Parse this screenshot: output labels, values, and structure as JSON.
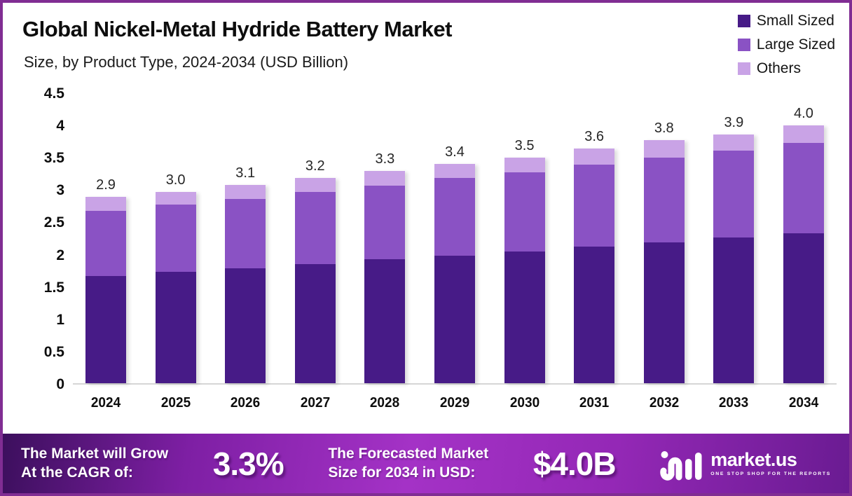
{
  "header": {
    "title": "Global Nickel-Metal Hydride Battery Market",
    "subtitle": "Size, by Product Type, 2024-2034 (USD Billion)"
  },
  "legend": {
    "items": [
      {
        "label": "Small Sized",
        "color": "#471B87"
      },
      {
        "label": "Large Sized",
        "color": "#8A52C4"
      },
      {
        "label": "Others",
        "color": "#C9A3E6"
      }
    ]
  },
  "chart_data": {
    "type": "bar",
    "stacked": true,
    "title": "Global Nickel-Metal Hydride Battery Market Size, by Product Type, 2024-2034 (USD Billion)",
    "categories": [
      "2024",
      "2025",
      "2026",
      "2027",
      "2028",
      "2029",
      "2030",
      "2031",
      "2032",
      "2033",
      "2034"
    ],
    "series": [
      {
        "name": "Small Sized",
        "color": "#471B87",
        "values": [
          1.66,
          1.72,
          1.78,
          1.84,
          1.92,
          1.97,
          2.04,
          2.11,
          2.18,
          2.26,
          2.32
        ]
      },
      {
        "name": "Large Sized",
        "color": "#8A52C4",
        "values": [
          1.01,
          1.05,
          1.07,
          1.12,
          1.14,
          1.21,
          1.22,
          1.27,
          1.31,
          1.34,
          1.4
        ]
      },
      {
        "name": "Others",
        "color": "#C9A3E6",
        "values": [
          0.21,
          0.19,
          0.22,
          0.22,
          0.23,
          0.21,
          0.23,
          0.25,
          0.27,
          0.25,
          0.27
        ]
      }
    ],
    "total_labels": [
      "2.9",
      "3.0",
      "3.1",
      "3.2",
      "3.3",
      "3.4",
      "3.5",
      "3.6",
      "3.8",
      "3.9",
      "4.0"
    ],
    "xlabel": "",
    "ylabel": "",
    "ylim": [
      0,
      4.5
    ],
    "y_ticks": [
      0,
      0.5,
      1,
      1.5,
      2,
      2.5,
      3,
      3.5,
      4,
      4.5
    ],
    "grid": false,
    "legend_position": "top-right"
  },
  "footer": {
    "cagr_label_line1": "The Market will Grow",
    "cagr_label_line2": "At the CAGR of:",
    "cagr_value": "3.3%",
    "forecast_label_line1": "The Forecasted Market",
    "forecast_label_line2": "Size for 2034 in USD:",
    "forecast_value": "$4.0B",
    "brand": {
      "name": "market.us",
      "tagline": "ONE STOP SHOP FOR THE REPORTS"
    }
  }
}
